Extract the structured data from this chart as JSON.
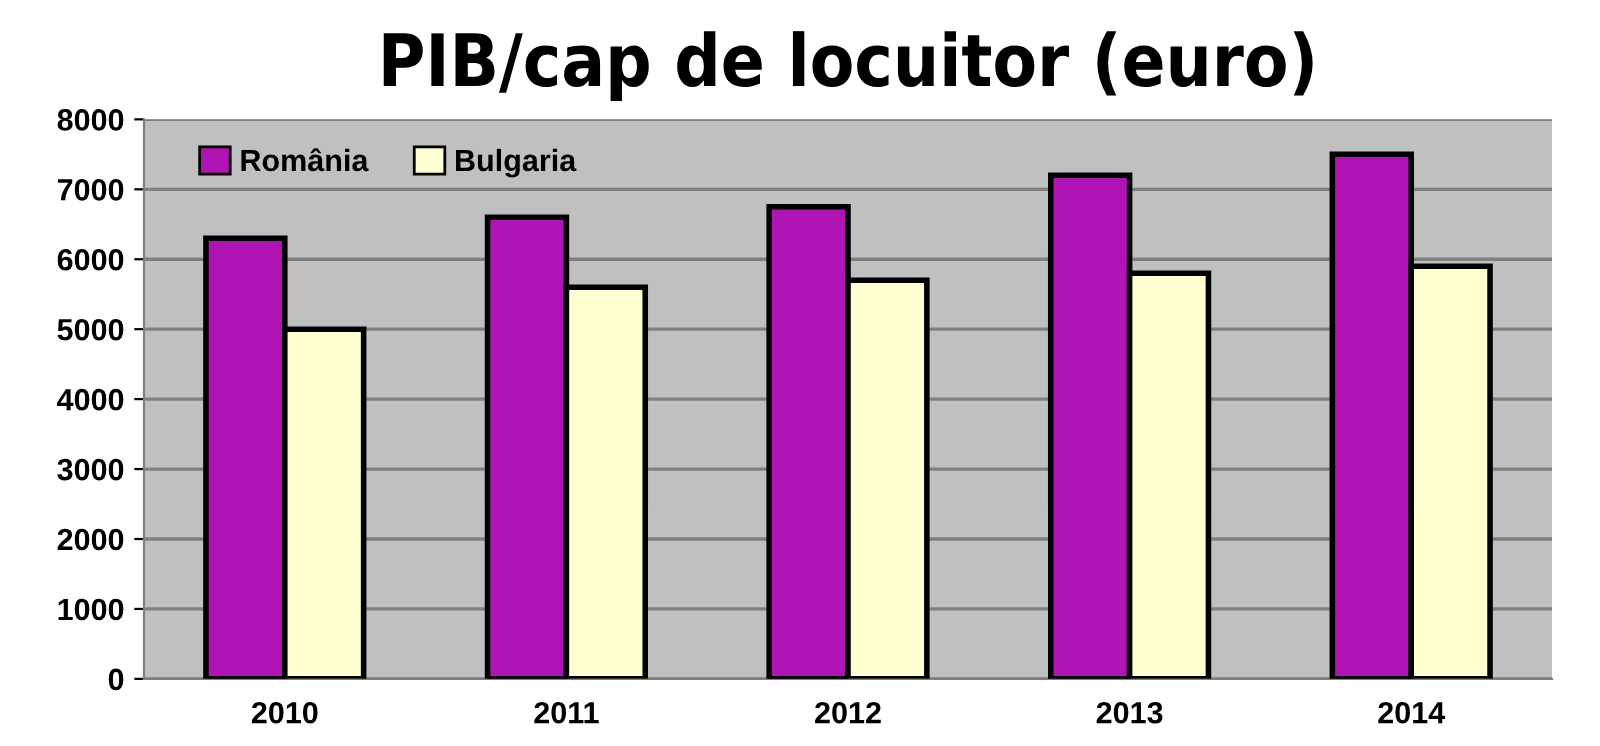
{
  "chart_data": {
    "type": "bar",
    "title": "PIB/cap de locuitor (euro)",
    "categories": [
      "2010",
      "2011",
      "2012",
      "2013",
      "2014"
    ],
    "series": [
      {
        "name": "România",
        "color": "#b014b4",
        "values": [
          6300,
          6600,
          6750,
          7200,
          7500
        ]
      },
      {
        "name": "Bulgaria",
        "color": "#ffffd2",
        "values": [
          5000,
          5600,
          5700,
          5800,
          5900
        ]
      }
    ],
    "ylim": [
      0,
      8000
    ],
    "yticks": [
      0,
      1000,
      2000,
      3000,
      4000,
      5000,
      6000,
      7000,
      8000
    ],
    "grid": "y",
    "legend": "top left"
  }
}
